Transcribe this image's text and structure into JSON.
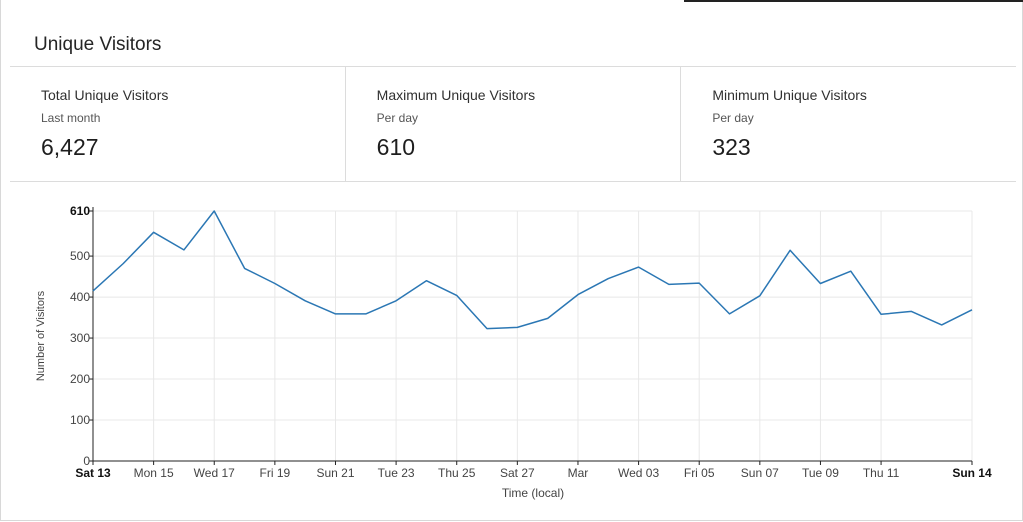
{
  "panel": {
    "title": "Unique Visitors"
  },
  "stats": [
    {
      "label": "Total Unique Visitors",
      "sub": "Last month",
      "value": "6,427"
    },
    {
      "label": "Maximum Unique Visitors",
      "sub": "Per day",
      "value": "610"
    },
    {
      "label": "Minimum Unique Visitors",
      "sub": "Per day",
      "value": "323"
    }
  ],
  "colors": {
    "line": "#2b77b4",
    "grid": "#e8e8e8",
    "axis": "#222222"
  },
  "chart_data": {
    "type": "line",
    "xlabel": "Time (local)",
    "ylabel": "Number of Visitors",
    "ylim": [
      0,
      610
    ],
    "grid": true,
    "y_ticks": [
      {
        "label": "0",
        "value": 0
      },
      {
        "label": "100",
        "value": 100
      },
      {
        "label": "200",
        "value": 200
      },
      {
        "label": "300",
        "value": 300
      },
      {
        "label": "400",
        "value": 400
      },
      {
        "label": "500",
        "value": 500
      },
      {
        "label": "610",
        "value": 610,
        "bold": true
      }
    ],
    "x_ticks": [
      {
        "label": "Sat 13",
        "day": 0,
        "bold": true
      },
      {
        "label": "Mon 15",
        "day": 2
      },
      {
        "label": "Wed 17",
        "day": 4
      },
      {
        "label": "Fri 19",
        "day": 6
      },
      {
        "label": "Sun 21",
        "day": 8
      },
      {
        "label": "Tue 23",
        "day": 10
      },
      {
        "label": "Thu 25",
        "day": 12
      },
      {
        "label": "Sat 27",
        "day": 14
      },
      {
        "label": "Mar",
        "day": 16
      },
      {
        "label": "Wed 03",
        "day": 18
      },
      {
        "label": "Fri 05",
        "day": 20
      },
      {
        "label": "Sun 07",
        "day": 22
      },
      {
        "label": "Tue 09",
        "day": 24
      },
      {
        "label": "Thu 11",
        "day": 26
      },
      {
        "label": "Sun 14",
        "day": 29,
        "bold": true
      }
    ],
    "x_range": [
      0,
      29
    ],
    "series": [
      {
        "x": [
          0,
          1,
          2,
          3,
          4,
          5,
          6,
          7,
          8,
          9,
          10,
          11,
          12,
          13,
          14,
          15,
          16,
          17,
          18,
          19,
          20,
          21,
          22,
          23,
          24,
          25,
          26,
          27,
          28,
          29
        ],
        "values": [
          415,
          482,
          558,
          515,
          610,
          470,
          433,
          391,
          359,
          359,
          391,
          440,
          404,
          323,
          326,
          348,
          406,
          445,
          473,
          431,
          434,
          359,
          403,
          514,
          433,
          463,
          358,
          365,
          332,
          369
        ]
      }
    ]
  }
}
